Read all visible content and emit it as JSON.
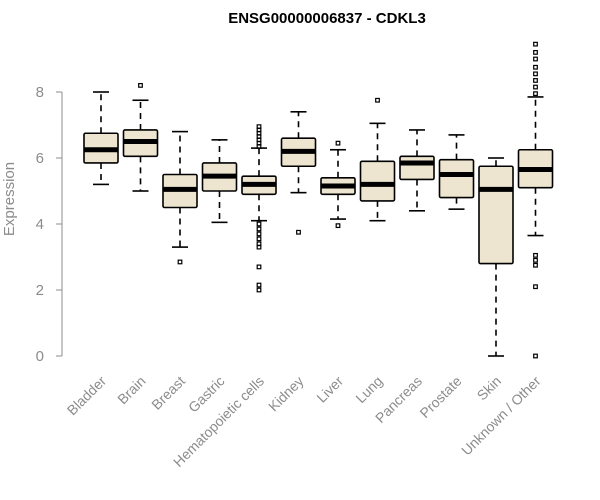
{
  "chart_data": {
    "type": "box",
    "title": "ENSG00000006837 - CDKL3",
    "ylabel": "Expression",
    "xlabel": "",
    "ylim": [
      0,
      9.5
    ],
    "yticks": [
      0,
      2,
      4,
      6,
      8
    ],
    "box_color": "#ede5cf",
    "categories": [
      "Bladder",
      "Brain",
      "Breast",
      "Gastric",
      "Hematopoietic cells",
      "Kidney",
      "Liver",
      "Lung",
      "Pancreas",
      "Prostate",
      "Skin",
      "Unknown / Other"
    ],
    "boxes": [
      {
        "category": "Bladder",
        "whisker_low": 5.2,
        "q1": 5.85,
        "median": 6.25,
        "q3": 6.75,
        "whisker_high": 8.0,
        "outliers": []
      },
      {
        "category": "Brain",
        "whisker_low": 5.0,
        "q1": 6.05,
        "median": 6.5,
        "q3": 6.85,
        "whisker_high": 7.75,
        "outliers": [
          8.2
        ]
      },
      {
        "category": "Breast",
        "whisker_low": 3.3,
        "q1": 4.5,
        "median": 5.05,
        "q3": 5.5,
        "whisker_high": 6.8,
        "outliers": [
          2.85
        ]
      },
      {
        "category": "Gastric",
        "whisker_low": 4.05,
        "q1": 5.0,
        "median": 5.45,
        "q3": 5.85,
        "whisker_high": 6.55,
        "outliers": []
      },
      {
        "category": "Hematopoietic cells",
        "whisker_low": 4.1,
        "q1": 4.9,
        "median": 5.2,
        "q3": 5.45,
        "whisker_high": 6.3,
        "outliers": [
          6.35,
          6.45,
          6.55,
          6.65,
          6.75,
          6.85,
          6.95,
          4.0,
          3.85,
          3.7,
          3.55,
          3.4,
          3.3,
          2.7,
          2.15,
          2.0
        ]
      },
      {
        "category": "Kidney",
        "whisker_low": 4.95,
        "q1": 5.75,
        "median": 6.2,
        "q3": 6.6,
        "whisker_high": 7.4,
        "outliers": [
          3.75
        ]
      },
      {
        "category": "Liver",
        "whisker_low": 4.15,
        "q1": 4.9,
        "median": 5.15,
        "q3": 5.4,
        "whisker_high": 6.25,
        "outliers": [
          6.45,
          3.95
        ]
      },
      {
        "category": "Lung",
        "whisker_low": 4.1,
        "q1": 4.7,
        "median": 5.2,
        "q3": 5.9,
        "whisker_high": 7.05,
        "outliers": [
          7.75
        ]
      },
      {
        "category": "Pancreas",
        "whisker_low": 4.4,
        "q1": 5.35,
        "median": 5.85,
        "q3": 6.05,
        "whisker_high": 6.85,
        "outliers": []
      },
      {
        "category": "Prostate",
        "whisker_low": 4.45,
        "q1": 4.8,
        "median": 5.5,
        "q3": 5.95,
        "whisker_high": 6.7,
        "outliers": []
      },
      {
        "category": "Skin",
        "whisker_low": 0.0,
        "q1": 2.8,
        "median": 5.05,
        "q3": 5.75,
        "whisker_high": 6.0,
        "outliers": []
      },
      {
        "category": "Unknown / Other",
        "whisker_low": 3.65,
        "q1": 5.1,
        "median": 5.65,
        "q3": 6.25,
        "whisker_high": 7.85,
        "outliers": [
          7.95,
          8.15,
          8.35,
          8.55,
          8.75,
          9.0,
          9.2,
          9.45,
          3.05,
          2.9,
          2.75,
          2.1,
          0.0
        ]
      }
    ]
  }
}
